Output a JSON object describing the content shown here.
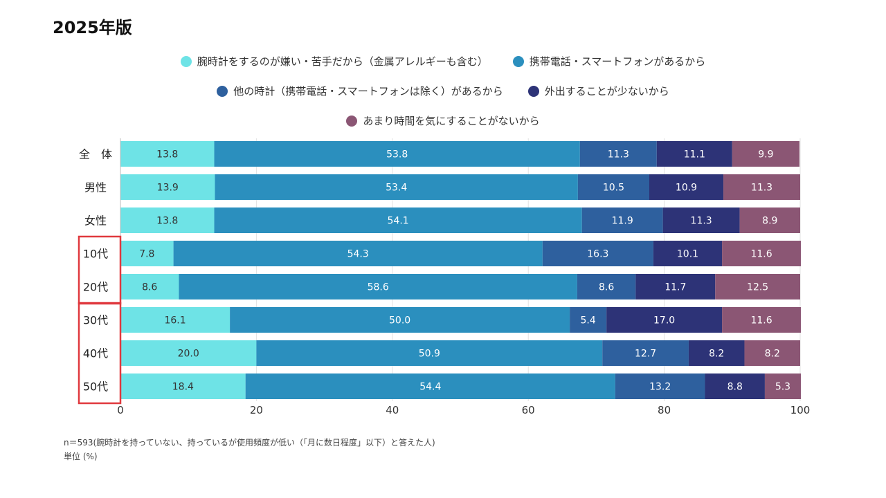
{
  "page_title": "2025年版",
  "legend_rows": [
    [
      0,
      1
    ],
    [
      2,
      3
    ],
    [
      4
    ]
  ],
  "chart_data": {
    "type": "bar",
    "orientation": "horizontal",
    "stacked": true,
    "categories": [
      "全　体",
      "男性",
      "女性",
      "10代",
      "20代",
      "30代",
      "40代",
      "50代"
    ],
    "series": [
      {
        "name": "腕時計をするのが嫌い・苦手だから（金属アレルギーも含む）",
        "color": "#6ee3e6",
        "label_color": "#333333",
        "values": [
          13.8,
          13.9,
          13.8,
          7.8,
          8.6,
          16.1,
          20.0,
          18.4
        ]
      },
      {
        "name": "携帯電話・スマートフォンがあるから",
        "color": "#2b8fbe",
        "label_color": "#ffffff",
        "values": [
          53.8,
          53.4,
          54.1,
          54.3,
          58.6,
          50.0,
          50.9,
          54.4
        ]
      },
      {
        "name": "他の時計（携帯電話・スマートフォンは除く）があるから",
        "color": "#2e609e",
        "label_color": "#ffffff",
        "values": [
          11.3,
          10.5,
          11.9,
          16.3,
          8.6,
          5.4,
          12.7,
          13.2
        ]
      },
      {
        "name": "外出することが少ないから",
        "color": "#2d3377",
        "label_color": "#ffffff",
        "values": [
          11.1,
          10.9,
          11.3,
          10.1,
          11.7,
          17.0,
          8.2,
          8.8
        ]
      },
      {
        "name": "あまり時間を気にすることがないから",
        "color": "#8b5674",
        "label_color": "#ffffff",
        "values": [
          9.9,
          11.3,
          8.9,
          11.6,
          12.5,
          11.6,
          8.2,
          5.3
        ]
      }
    ],
    "xlim": [
      0,
      100
    ],
    "xticks": [
      "0",
      "20",
      "40",
      "60",
      "80",
      "100"
    ],
    "grid": true,
    "legend_position": "top",
    "highlight_groups": [
      [
        3,
        4
      ],
      [
        5,
        6,
        7
      ]
    ],
    "highlight_color": "#e0393e"
  },
  "notes": {
    "sample": "n＝593(腕時計を持っていない、持っているが使用頻度が低い（「月に数日程度」以下）と答えた人)",
    "unit": "単位 (%)"
  }
}
